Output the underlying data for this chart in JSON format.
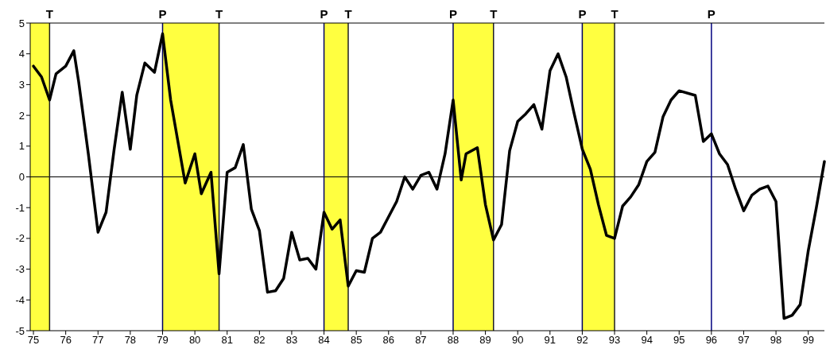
{
  "chart_data": {
    "type": "line",
    "xlim": [
      74.9,
      99.5
    ],
    "ylim": [
      -5,
      5
    ],
    "xticks": [
      {
        "value": 75,
        "label": "75"
      },
      {
        "value": 76,
        "label": "76"
      },
      {
        "value": 77,
        "label": "77"
      },
      {
        "value": 78,
        "label": "78"
      },
      {
        "value": 79,
        "label": "79"
      },
      {
        "value": 80,
        "label": "80"
      },
      {
        "value": 81,
        "label": "81"
      },
      {
        "value": 82,
        "label": "82"
      },
      {
        "value": 83,
        "label": "83"
      },
      {
        "value": 84,
        "label": "84"
      },
      {
        "value": 85,
        "label": "85"
      },
      {
        "value": 86,
        "label": "86"
      },
      {
        "value": 87,
        "label": "87"
      },
      {
        "value": 88,
        "label": "88"
      },
      {
        "value": 89,
        "label": "89"
      },
      {
        "value": 90,
        "label": "90"
      },
      {
        "value": 91,
        "label": "91"
      },
      {
        "value": 92,
        "label": "92"
      },
      {
        "value": 93,
        "label": "93"
      },
      {
        "value": 94,
        "label": "94"
      },
      {
        "value": 95,
        "label": "95"
      },
      {
        "value": 96,
        "label": "96"
      },
      {
        "value": 97,
        "label": "97"
      },
      {
        "value": 98,
        "label": "98"
      },
      {
        "value": 99,
        "label": "99"
      }
    ],
    "yticks": [
      -5,
      -4,
      -3,
      -2,
      -1,
      0,
      1,
      2,
      3,
      4,
      5
    ],
    "marker": "none",
    "line_style": "solid",
    "series": [
      {
        "color": "#000000",
        "x": [
          75,
          75.25,
          75.5,
          75.7,
          76,
          76.25,
          76.4,
          76.7,
          77,
          77.25,
          77.5,
          77.75,
          78,
          78.2,
          78.45,
          78.75,
          79,
          79.25,
          79.5,
          79.7,
          80,
          80.2,
          80.5,
          80.75,
          81,
          81.25,
          81.5,
          81.75,
          82,
          82.25,
          82.5,
          82.75,
          83,
          83.25,
          83.5,
          83.75,
          84,
          84.25,
          84.5,
          84.75,
          85,
          85.25,
          85.5,
          85.75,
          86,
          86.25,
          86.5,
          86.75,
          87,
          87.25,
          87.5,
          87.75,
          88,
          88.25,
          88.4,
          88.75,
          89,
          89.25,
          89.5,
          89.75,
          90,
          90.25,
          90.5,
          90.75,
          91,
          91.25,
          91.5,
          91.75,
          92,
          92.25,
          92.5,
          92.75,
          93,
          93.25,
          93.5,
          93.75,
          94,
          94.25,
          94.5,
          94.75,
          95,
          95.5,
          95.75,
          96,
          96.25,
          96.5,
          96.75,
          97,
          97.25,
          97.5,
          97.75,
          98,
          98.25,
          98.5,
          98.75,
          99,
          99.25,
          99.5
        ],
        "values": [
          3.6,
          3.25,
          2.5,
          3.35,
          3.6,
          4.1,
          3.1,
          0.75,
          -1.8,
          -1.15,
          0.9,
          2.75,
          0.9,
          2.65,
          3.7,
          3.4,
          4.65,
          2.5,
          1.0,
          -0.2,
          0.75,
          -0.55,
          0.15,
          -3.15,
          0.15,
          0.3,
          1.05,
          -1.05,
          -1.75,
          -3.75,
          -3.7,
          -3.3,
          -1.8,
          -2.7,
          -2.65,
          -3.0,
          -1.15,
          -1.7,
          -1.4,
          -3.55,
          -3.05,
          -3.1,
          -2.0,
          -1.8,
          -1.3,
          -0.8,
          0.0,
          -0.4,
          0.05,
          0.15,
          -0.4,
          0.75,
          2.5,
          -0.1,
          0.75,
          0.95,
          -0.9,
          -2.05,
          -1.55,
          0.85,
          1.8,
          2.05,
          2.35,
          1.55,
          3.45,
          4.0,
          3.25,
          2.05,
          0.9,
          0.25,
          -0.9,
          -1.9,
          -2.0,
          -0.95,
          -0.65,
          -0.25,
          0.5,
          0.8,
          1.95,
          2.5,
          2.8,
          2.65,
          1.15,
          1.4,
          0.75,
          0.4,
          -0.4,
          -1.1,
          -0.6,
          -0.4,
          -0.3,
          -0.8,
          -4.6,
          -4.5,
          -4.15,
          -2.4,
          -1.0,
          0.5
        ]
      }
    ],
    "bands": [
      {
        "axis": "x",
        "from": 74.9,
        "to": 75.5,
        "color": "#ffff40"
      },
      {
        "axis": "x",
        "from": 79,
        "to": 80.75,
        "color": "#ffff40"
      },
      {
        "axis": "x",
        "from": 84,
        "to": 84.75,
        "color": "#ffff40"
      },
      {
        "axis": "x",
        "from": 88,
        "to": 89.25,
        "color": "#ffff40"
      },
      {
        "axis": "x",
        "from": 92,
        "to": 93,
        "color": "#ffff40"
      }
    ],
    "ref_lines": [
      {
        "axis": "y",
        "value": 0,
        "color": "#000000"
      },
      {
        "axis": "x",
        "value": 75.5,
        "label": "T",
        "color": "#202020"
      },
      {
        "axis": "x",
        "value": 79,
        "label": "P",
        "color": "#000060"
      },
      {
        "axis": "x",
        "value": 80.75,
        "label": "T",
        "color": "#202020"
      },
      {
        "axis": "x",
        "value": 84,
        "label": "P",
        "color": "#000060"
      },
      {
        "axis": "x",
        "value": 84.75,
        "label": "T",
        "color": "#202020"
      },
      {
        "axis": "x",
        "value": 88,
        "label": "P",
        "color": "#000060"
      },
      {
        "axis": "x",
        "value": 89.25,
        "label": "T",
        "color": "#202020"
      },
      {
        "axis": "x",
        "value": 92,
        "label": "P",
        "color": "#000060"
      },
      {
        "axis": "x",
        "value": 93,
        "label": "T",
        "color": "#202020"
      },
      {
        "axis": "x",
        "value": 96,
        "label": "P",
        "color": "#000080"
      }
    ]
  }
}
